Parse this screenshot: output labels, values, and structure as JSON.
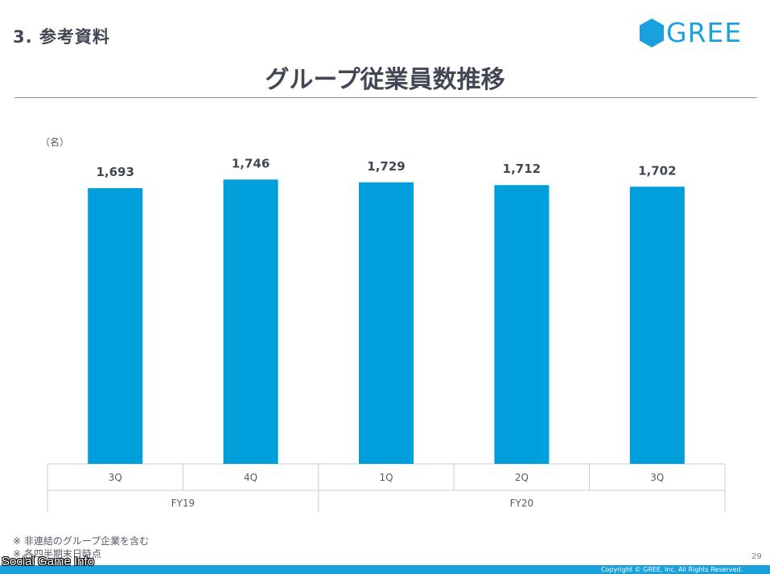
{
  "header": {
    "section_title": "3. 参考資料",
    "logo_text": "GREE",
    "main_title": "グループ従業員数推移"
  },
  "chart_data": {
    "type": "bar",
    "unit_label": "（名）",
    "categories": [
      "3Q",
      "4Q",
      "1Q",
      "2Q",
      "3Q"
    ],
    "groups": [
      {
        "label": "FY19",
        "categories": [
          "3Q",
          "4Q"
        ]
      },
      {
        "label": "FY20",
        "categories": [
          "1Q",
          "2Q",
          "3Q"
        ]
      }
    ],
    "values": [
      1693,
      1746,
      1729,
      1712,
      1702
    ],
    "value_labels": [
      "1,693",
      "1,746",
      "1,729",
      "1,712",
      "1,702"
    ],
    "ylim": [
      0,
      1960
    ],
    "bar_color": "#009fdc",
    "grid": false
  },
  "footnotes": [
    "※ 非連結のグループ企業を含む",
    "※ 各四半期末日時点"
  ],
  "page_number": "29",
  "copyright": "Copyright © GREE, Inc. All Rights Reserved.",
  "watermark": "Social Game Info",
  "colors": {
    "accent": "#1aa0dc",
    "title": "#414753"
  }
}
